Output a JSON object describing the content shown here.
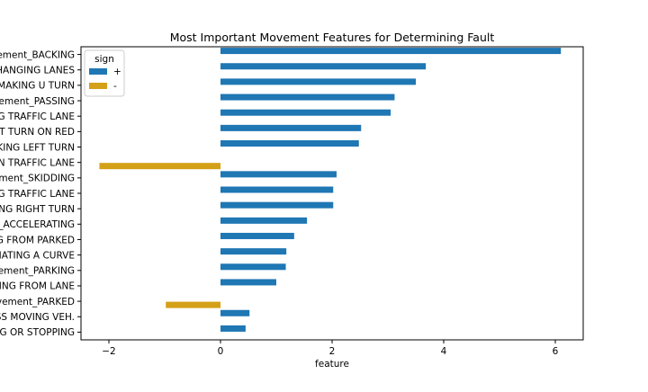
{
  "chart_data": {
    "type": "bar",
    "orientation": "horizontal",
    "title": "Most Important Movement Features for Determining Fault",
    "xlabel": "feature",
    "ylabel": "",
    "xlim": [
      -2.5,
      6.5
    ],
    "xticks": [
      -2,
      0,
      2,
      4,
      6
    ],
    "xtick_labels": [
      "−2",
      "0",
      "2",
      "4",
      "6"
    ],
    "grid": false,
    "legend": {
      "title": "sign",
      "placement": "top-left"
    },
    "series": [
      {
        "name": "+",
        "color": "#1f77b4"
      },
      {
        "name": "-",
        "color": "#d4a017"
      }
    ],
    "categories": [
      "ement_BACKING",
      "HANGING LANES",
      "MAKING U TURN",
      "vement_PASSING",
      "G TRAFFIC LANE",
      "HT TURN ON RED",
      "KING LEFT TURN",
      "IN TRAFFIC LANE",
      "ement_SKIDDING",
      "G TRAFFIC LANE",
      "ING RIGHT TURN",
      "t_ACCELERATING",
      "G FROM PARKED",
      "TIATING A CURVE",
      "vement_PARKING",
      "TING FROM LANE",
      "vement_PARKED",
      "SS MOVING VEH.",
      "NG OR STOPPING"
    ],
    "values": [
      6.1,
      3.68,
      3.5,
      3.12,
      3.05,
      2.52,
      2.48,
      -2.17,
      2.08,
      2.02,
      2.02,
      1.55,
      1.32,
      1.18,
      1.17,
      1.0,
      -0.98,
      0.52,
      0.45
    ],
    "signs": [
      "+",
      "+",
      "+",
      "+",
      "+",
      "+",
      "+",
      "-",
      "+",
      "+",
      "+",
      "+",
      "+",
      "+",
      "+",
      "+",
      "-",
      "+",
      "+"
    ]
  }
}
